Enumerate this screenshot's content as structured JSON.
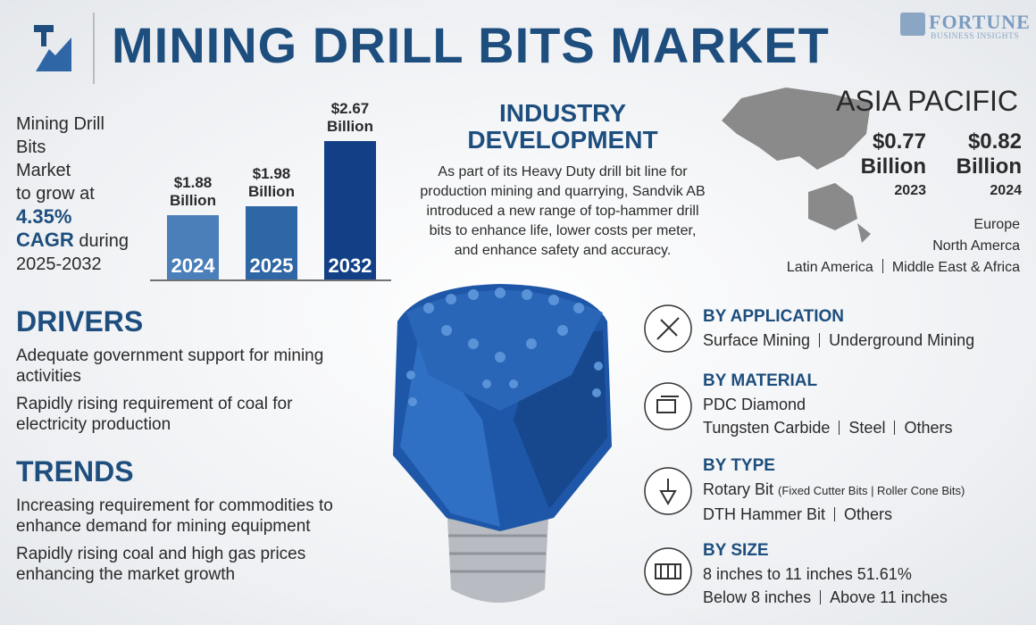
{
  "header": {
    "title": "MINING DRILL BITS MARKET",
    "logo": "FORTUNE",
    "logo_sub": "BUSINESS INSIGHTS"
  },
  "growth": {
    "lines": [
      "Mining Drill",
      "Bits",
      "Market",
      "to grow at"
    ],
    "cagr": "4.35%",
    "cagr_label": "CAGR",
    "during": "during",
    "period": "2025-2032"
  },
  "chart_data": {
    "type": "bar",
    "categories": [
      "2024",
      "2025",
      "2032"
    ],
    "values": [
      1.88,
      1.98,
      2.67
    ],
    "value_labels": [
      "$1.88 Billion",
      "$1.98 Billion",
      "$2.67 Billion"
    ],
    "colors": [
      "#4a7fba",
      "#2f67a6",
      "#123f85"
    ],
    "ylim": [
      1.2,
      2.75
    ]
  },
  "industry": {
    "title": "INDUSTRY DEVELOPMENT",
    "body": "As part of its Heavy Duty drill bit line for production mining and quarrying, Sandvik AB introduced a new range of top-hammer drill bits to enhance life, lower costs per meter, and enhance safety and accuracy."
  },
  "region": {
    "title": "ASIA PACIFIC",
    "items": [
      {
        "value": "$0.77",
        "unit": "Billion",
        "year": "2023"
      },
      {
        "value": "$0.82",
        "unit": "Billion",
        "year": "2024"
      }
    ],
    "others": [
      [
        "Europe"
      ],
      [
        "North Amerca"
      ],
      [
        "Latin America",
        "Middle East & Africa"
      ]
    ]
  },
  "drivers": {
    "title": "DRIVERS",
    "items": [
      "Adequate government support for mining activities",
      "Rapidly rising requirement of coal for electricity production"
    ]
  },
  "trends": {
    "title": "TRENDS",
    "items": [
      "Increasing requirement for commodities to enhance demand for mining equipment",
      "Rapidly rising coal and high gas prices enhancing the market growth"
    ]
  },
  "segments": [
    {
      "title": "BY APPLICATION",
      "lines": [
        [
          {
            "text": "Surface Mining"
          },
          {
            "text": "Underground Mining"
          }
        ]
      ]
    },
    {
      "title": "BY MATERIAL",
      "lines": [
        [
          {
            "text": "PDC Diamond"
          }
        ],
        [
          {
            "text": "Tungsten Carbide"
          },
          {
            "text": "Steel"
          },
          {
            "text": "Others"
          }
        ]
      ]
    },
    {
      "title": "BY TYPE",
      "lines": [
        [
          {
            "text": "Rotary Bit",
            "note": "(Fixed Cutter Bits | Roller Cone Bits)"
          }
        ],
        [
          {
            "text": "DTH Hammer Bit"
          },
          {
            "text": "Others"
          }
        ]
      ]
    },
    {
      "title": "BY SIZE",
      "lines": [
        [
          {
            "text": "8 inches to 11 inches 51.61%"
          }
        ],
        [
          {
            "text": "Below 8 inches"
          },
          {
            "text": "Above 11 inches"
          }
        ]
      ]
    }
  ]
}
